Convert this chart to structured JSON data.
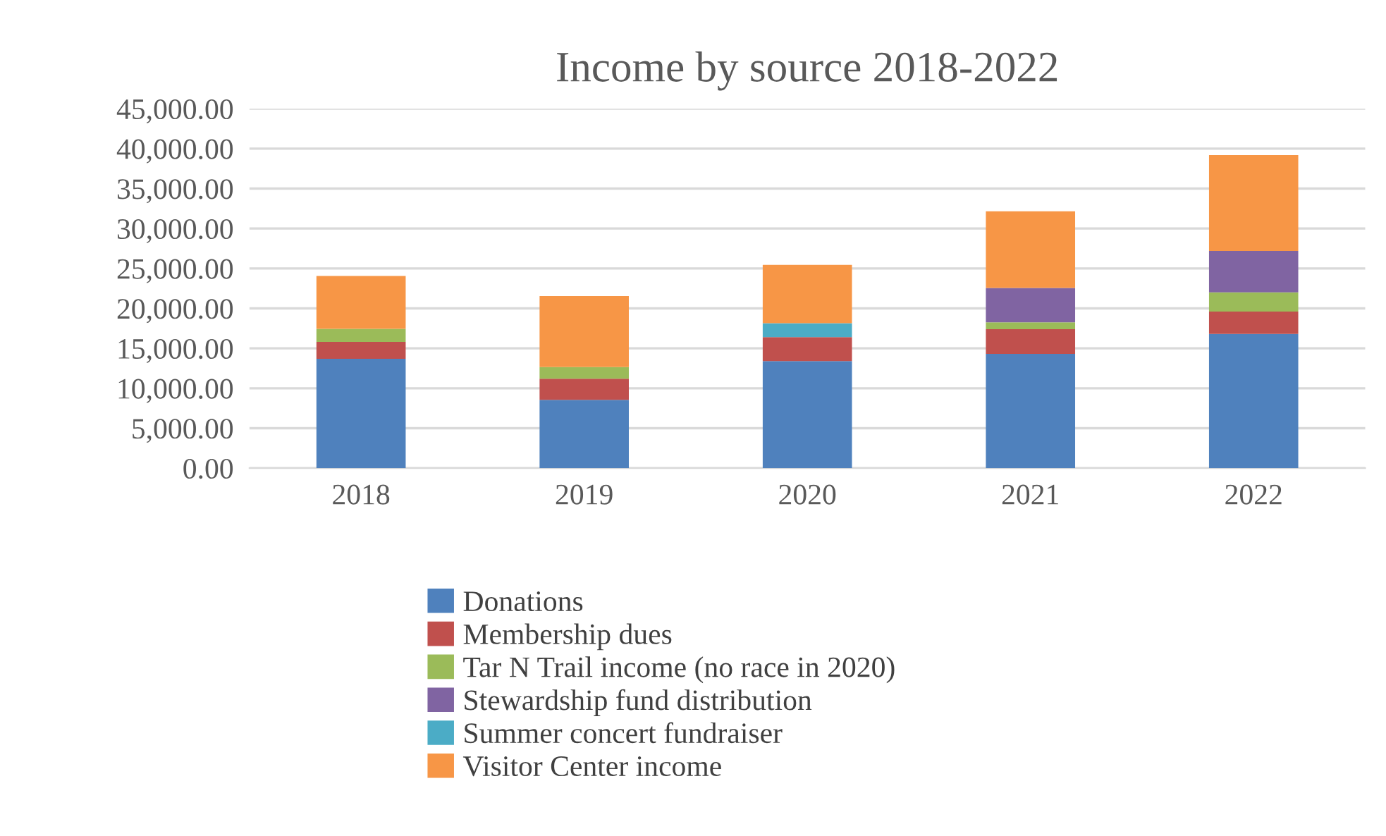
{
  "chart_data": {
    "type": "bar",
    "title": "Income by source 2018-2022",
    "stacked": true,
    "categories": [
      "2018",
      "2019",
      "2020",
      "2021",
      "2022"
    ],
    "series": [
      {
        "name": "Donations",
        "color": "#4f81bd",
        "values": [
          13700,
          8550,
          13400,
          14300,
          16800
        ]
      },
      {
        "name": "Membership dues",
        "color": "#c0504d",
        "values": [
          2100,
          2650,
          3000,
          3100,
          2800
        ]
      },
      {
        "name": "Tar N Trail income (no race in 2020)",
        "color": "#9bbb59",
        "values": [
          1650,
          1450,
          0,
          850,
          2400
        ]
      },
      {
        "name": "Stewardship fund distribution",
        "color": "#8064a2",
        "values": [
          0,
          0,
          0,
          4300,
          5200
        ]
      },
      {
        "name": "Summer concert fundraiser",
        "color": "#4bacc6",
        "values": [
          0,
          0,
          1750,
          0,
          0
        ]
      },
      {
        "name": "Visitor Center income",
        "color": "#f79646",
        "values": [
          6600,
          8900,
          7300,
          9600,
          12000
        ]
      }
    ],
    "ylim": [
      0,
      45000
    ],
    "yticks": [
      {
        "value": 0,
        "label": "0.00"
      },
      {
        "value": 5000,
        "label": "5,000.00"
      },
      {
        "value": 10000,
        "label": "10,000.00"
      },
      {
        "value": 15000,
        "label": "15,000.00"
      },
      {
        "value": 20000,
        "label": "20,000.00"
      },
      {
        "value": 25000,
        "label": "25,000.00"
      },
      {
        "value": 30000,
        "label": "30,000.00"
      },
      {
        "value": 35000,
        "label": "35,000.00"
      },
      {
        "value": 40000,
        "label": "40,000.00"
      },
      {
        "value": 45000,
        "label": "45,000.00"
      }
    ],
    "grid": "y",
    "legend": "bottom"
  }
}
